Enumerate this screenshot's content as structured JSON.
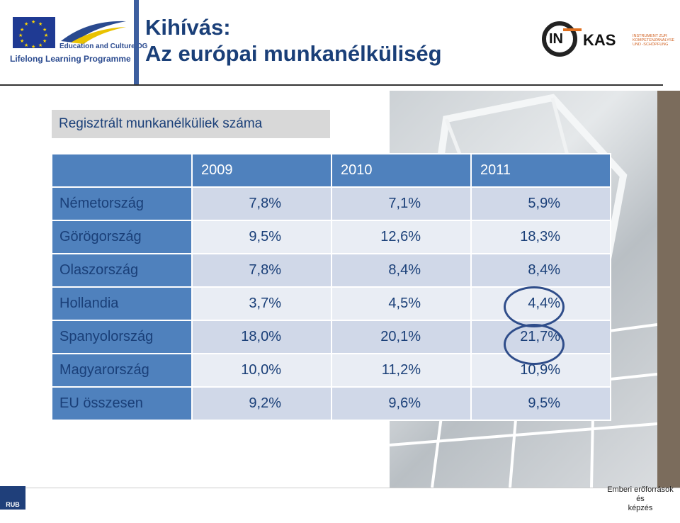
{
  "header": {
    "title_line1": "Kihívás:",
    "title_line2": "Az európai munkanélküliség",
    "logo_left_dg": "Education and Culture DG",
    "logo_left_programme": "Lifelong Learning Programme",
    "logo_right_in": "IN",
    "logo_right_kas": "KAS",
    "logo_right_small1": "INSTRUMENT ZUR",
    "logo_right_small2": "KOMPETENZANALYSE",
    "logo_right_small3": "UND -SCHÖPFUNG"
  },
  "subtitle": "Regisztrált munkanélküliek száma",
  "table": {
    "years": [
      "2009",
      "2010",
      "2011"
    ],
    "rows": [
      {
        "country": "Németország",
        "values": [
          "7,8%",
          "7,1%",
          "5,9%"
        ]
      },
      {
        "country": "Görögország",
        "values": [
          "9,5%",
          "12,6%",
          "18,3%"
        ]
      },
      {
        "country": "Olaszország",
        "values": [
          "7,8%",
          "8,4%",
          "8,4%"
        ]
      },
      {
        "country": "Hollandia",
        "values": [
          "3,7%",
          "4,5%",
          "4,4%"
        ]
      },
      {
        "country": "Spanyolország",
        "values": [
          "18,0%",
          "20,1%",
          "21,7%"
        ]
      },
      {
        "country": "Magyarország",
        "values": [
          "10,0%",
          "11,2%",
          "10,9%"
        ]
      },
      {
        "country": "EU összesen",
        "values": [
          "9,2%",
          "9,6%",
          "9,5%"
        ]
      }
    ],
    "highlight_color": "#2f4d8a"
  },
  "footer": {
    "rub": "RUB",
    "line1": "Emberi erőforrások",
    "line2": "és",
    "line3": "képzés"
  }
}
